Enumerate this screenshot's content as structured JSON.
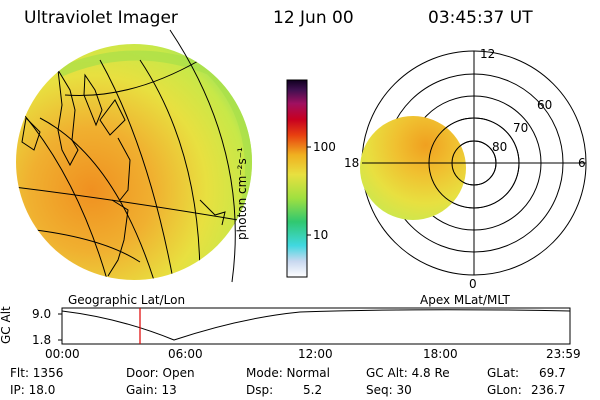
{
  "header": {
    "instrument": "Ultraviolet Imager",
    "date": "12 Jun 00",
    "time": "03:45:37 UT"
  },
  "colorbar": {
    "unit_label": "photon cm⁻²s⁻¹",
    "tick_labels": [
      "100",
      "10"
    ]
  },
  "panels": {
    "left_label": "Geographic Lat/Lon",
    "right_label": "Apex MLat/MLT"
  },
  "polar": {
    "mlt_labels": [
      "12",
      "18",
      "6",
      "0"
    ],
    "lat_labels": [
      "60",
      "70",
      "80"
    ]
  },
  "orbit_plot": {
    "ylabel": "GC Alt",
    "y_ticks": [
      "9.0",
      "1.8"
    ],
    "x_ticks": [
      "00:00",
      "06:00",
      "12:00",
      "18:00",
      "23:59"
    ],
    "current_time_fraction": 0.157
  },
  "info": {
    "flt": "Flt: 1356",
    "ip": "IP: 18.0",
    "door": "Door: Open",
    "gain": "Gain: 13",
    "mode": "Mode: Normal",
    "dsp": "Dsp:",
    "dsp_val": "5.2",
    "gcalt": "GC Alt: 4.8 Re",
    "seq": "Seq: 30",
    "glat": "GLat:",
    "glat_val": "69.7",
    "glon": "GLon:",
    "glon_val": "236.7"
  },
  "colors": {
    "image_yellow": "#e8e040",
    "image_orange": "#f0a020",
    "image_green": "#a8e048",
    "marker_red": "#e00000"
  }
}
